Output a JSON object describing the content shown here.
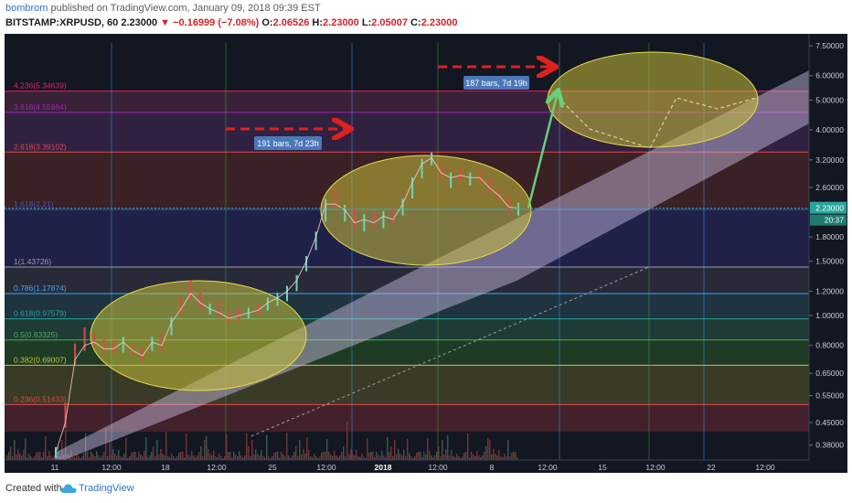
{
  "header": {
    "author": "bombrom",
    "published_text": "published on TradingView.com, January 09, 2018 09:39 EST",
    "symbol": "BITSTAMP:XRPUSD, 60",
    "price": "2.23000",
    "change": "▼ −0.16999 (−7.08%)",
    "ohlc": [
      {
        "label": "O:",
        "value": "2.06526"
      },
      {
        "label": "H:",
        "value": "2.23000"
      },
      {
        "label": "L:",
        "value": "2.05007"
      },
      {
        "label": "C:",
        "value": "2.23000"
      }
    ]
  },
  "footer": {
    "created_with": "Created with",
    "brand": "TradingView"
  },
  "colors": {
    "background": "#131722",
    "fib_line_red": "#e0474c",
    "fib_line_green": "#4caf50",
    "channel": "#d1c4e9",
    "ellipse": "#c8bf3a",
    "arrow_red": "#e02020",
    "arrow_green": "#66d07a",
    "price_tag": "#26a69a"
  },
  "chart_data": {
    "type": "candlestick",
    "scale": "log",
    "ylim": [
      0.34,
      8.2
    ],
    "y_ticks": [
      "7.50000",
      "6.00000",
      "5.00000",
      "4.00000",
      "3.20000",
      "2.60000",
      "1.80000",
      "1.50000",
      "1.20000",
      "1.00000",
      "0.80000",
      "0.65000",
      "0.55000",
      "0.45000",
      "0.38000"
    ],
    "y_tick_values": [
      7.5,
      6.0,
      5.0,
      4.0,
      3.2,
      2.6,
      1.8,
      1.5,
      1.2,
      1.0,
      0.8,
      0.65,
      0.55,
      0.45,
      0.38
    ],
    "x_ticks": [
      "11",
      "12:00",
      "18",
      "12:00",
      "25",
      "12:00",
      "2018",
      "12:00",
      "8",
      "12:00",
      "15",
      "12:00",
      "22",
      "12:00"
    ],
    "last_price": "2.23000",
    "countdown": "20:37",
    "fib_levels": [
      {
        "ratio": "0.236",
        "price": 0.51433,
        "label": "0.236(0.51433)"
      },
      {
        "ratio": "0.382",
        "price": 0.69007,
        "label": "0.382(0.69007)"
      },
      {
        "ratio": "0.5",
        "price": 0.83325,
        "label": "0.5(0.83325)"
      },
      {
        "ratio": "0.618",
        "price": 0.97579,
        "label": "0.618(0.97579)"
      },
      {
        "ratio": "0.786",
        "price": 1.17874,
        "label": "0.786(1.17874)"
      },
      {
        "ratio": "1",
        "price": 1.43726,
        "label": "1(1.43726)"
      },
      {
        "ratio": "1.618",
        "price": 2.21,
        "label": "1.618(2.21)"
      },
      {
        "ratio": "2.618",
        "price": 3.39102,
        "label": "2.618(3.39102)"
      },
      {
        "ratio": "3.618",
        "price": 4.55984,
        "label": "3.618(4.55984)"
      },
      {
        "ratio": "4.236",
        "price": 5.34639,
        "label": "4.236(5.34639)"
      }
    ],
    "annotations": [
      {
        "text": "191 bars, 7d 23h"
      },
      {
        "text": "187 bars, 7d 19h"
      }
    ],
    "price_path": [
      [
        0.36,
        0.36
      ],
      [
        0.5,
        0.45
      ],
      [
        0.78,
        0.72
      ],
      [
        0.88,
        0.8
      ],
      [
        0.84,
        0.82
      ],
      [
        0.81,
        0.78
      ],
      [
        0.8,
        0.78
      ],
      [
        0.79,
        0.82
      ],
      [
        0.78,
        0.77
      ],
      [
        0.76,
        0.74
      ],
      [
        0.8,
        0.82
      ],
      [
        0.84,
        0.8
      ],
      [
        0.9,
        0.95
      ],
      [
        1.1,
        1.05
      ],
      [
        1.25,
        1.18
      ],
      [
        1.14,
        1.1
      ],
      [
        1.05,
        1.05
      ],
      [
        1.08,
        1.02
      ],
      [
        1.0,
        0.98
      ],
      [
        1.02,
        1.0
      ],
      [
        1.02,
        1.02
      ],
      [
        1.05,
        1.04
      ],
      [
        1.08,
        1.1
      ],
      [
        1.12,
        1.14
      ],
      [
        1.16,
        1.2
      ],
      [
        1.25,
        1.3
      ],
      [
        1.45,
        1.5
      ],
      [
        1.7,
        1.8
      ],
      [
        2.1,
        2.3
      ],
      [
        2.5,
        2.3
      ],
      [
        2.1,
        2.2
      ],
      [
        2.15,
        2.0
      ],
      [
        1.95,
        2.05
      ],
      [
        2.1,
        2.0
      ],
      [
        2.0,
        2.1
      ],
      [
        2.15,
        2.05
      ],
      [
        2.2,
        2.3
      ],
      [
        2.5,
        2.7
      ],
      [
        2.9,
        3.1
      ],
      [
        3.2,
        3.25
      ],
      [
        3.0,
        2.9
      ],
      [
        2.7,
        2.8
      ],
      [
        2.9,
        2.85
      ],
      [
        2.75,
        2.8
      ],
      [
        2.85,
        2.8
      ],
      [
        2.7,
        2.6
      ],
      [
        2.5,
        2.45
      ],
      [
        2.35,
        2.25
      ],
      [
        2.2,
        2.23
      ]
    ]
  }
}
